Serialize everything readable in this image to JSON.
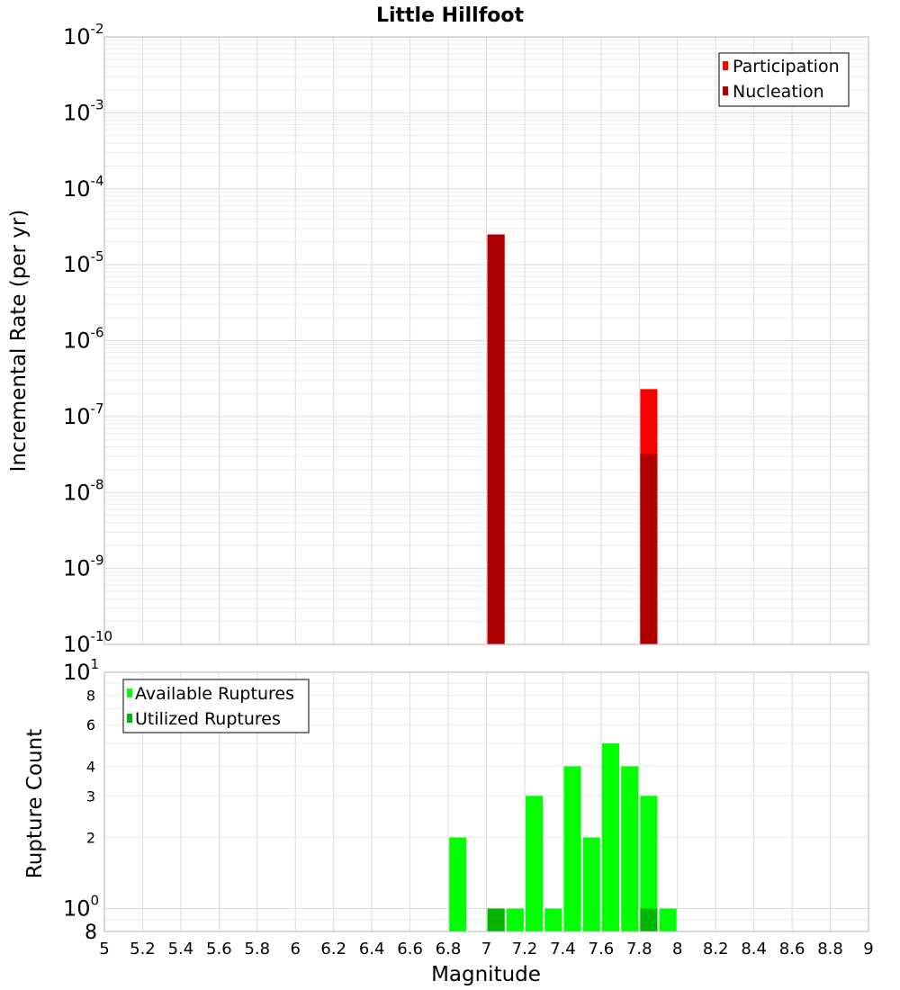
{
  "chart_data": [
    {
      "type": "bar",
      "title": "Little Hillfoot",
      "xlabel": "",
      "ylabel": "Incremental Rate (per yr)",
      "yscale": "log",
      "ylim": [
        1e-10,
        0.01
      ],
      "xlim": [
        5,
        9
      ],
      "y_tick_exponents": [
        "-10",
        "-9",
        "-8",
        "-7",
        "-6",
        "-5",
        "-4",
        "-3",
        "-2"
      ],
      "legend_position": "top-right",
      "series": [
        {
          "name": "Participation",
          "color": "#ff0000",
          "x": [
            7.05,
            7.85
          ],
          "values": [
            2.5e-05,
            2.3e-07
          ]
        },
        {
          "name": "Nucleation",
          "color": "#b00000",
          "x": [
            7.05,
            7.85
          ],
          "values": [
            2.5e-05,
            3.2e-08
          ]
        }
      ]
    },
    {
      "type": "bar",
      "xlabel": "Magnitude",
      "ylabel": "Rupture Count",
      "yscale": "log",
      "ylim": [
        0.8,
        10
      ],
      "xlim": [
        5,
        9
      ],
      "x_ticks": [
        "5",
        "5.2",
        "5.4",
        "5.6",
        "5.8",
        "6",
        "6.2",
        "6.4",
        "6.6",
        "6.8",
        "7",
        "7.2",
        "7.4",
        "7.6",
        "7.8",
        "8",
        "8.2",
        "8.4",
        "8.6",
        "8.8",
        "9"
      ],
      "y_tick_labels": [
        {
          "v": 8,
          "label": "8"
        },
        {
          "v": 6,
          "label": "6"
        },
        {
          "v": 4,
          "label": "4"
        },
        {
          "v": 3,
          "label": "3"
        },
        {
          "v": 2,
          "label": "2"
        }
      ],
      "y_decade_labels": [
        {
          "v": 10,
          "base": "10",
          "exp": "1"
        },
        {
          "v": 1,
          "base": "10",
          "exp": "0"
        }
      ],
      "y_bottom_label": "8",
      "legend_position": "top-left",
      "series": [
        {
          "name": "Available Ruptures",
          "color": "#00ff00",
          "x": [
            6.85,
            7.05,
            7.15,
            7.25,
            7.35,
            7.45,
            7.55,
            7.65,
            7.75,
            7.85,
            7.95
          ],
          "values": [
            2,
            1,
            1,
            3,
            1,
            4,
            2,
            5,
            4,
            3,
            1
          ]
        },
        {
          "name": "Utilized Ruptures",
          "color": "#00b400",
          "x": [
            7.05,
            7.85
          ],
          "values": [
            1,
            1
          ]
        }
      ]
    }
  ]
}
